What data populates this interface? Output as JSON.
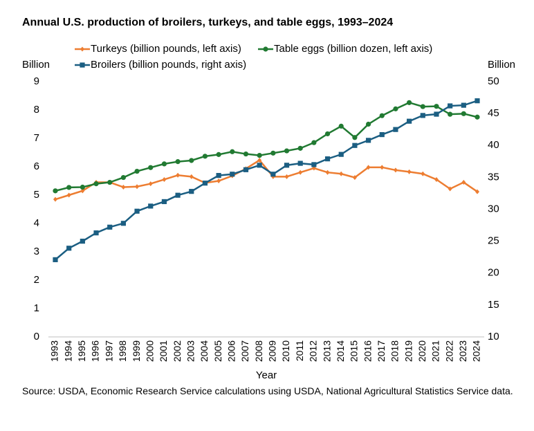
{
  "chart_data": {
    "type": "line",
    "title": "Annual U.S. production of broilers, turkeys, and table eggs, 1993–2024",
    "y_label": "Billion",
    "y2_label": "Billion",
    "x_label": "Year",
    "source": "Source: USDA, Economic Research Service calculations using USDA, National Agricultural Statistics Service data.",
    "categories": [
      "1993",
      "1994",
      "1995",
      "1996",
      "1997",
      "1998",
      "1999",
      "2000",
      "2001",
      "2002",
      "2003",
      "2004",
      "2005",
      "2006",
      "2007",
      "2008",
      "2009",
      "2010",
      "2011",
      "2012",
      "2013",
      "2014",
      "2015",
      "2016",
      "2017",
      "2018",
      "2019",
      "2020",
      "2021",
      "2022",
      "2023",
      "2024"
    ],
    "ylim": [
      0,
      9
    ],
    "yticks": [
      0,
      1,
      2,
      3,
      4,
      5,
      6,
      7,
      8,
      9
    ],
    "y2lim": [
      10,
      50
    ],
    "y2ticks": [
      10,
      15,
      20,
      25,
      30,
      35,
      40,
      45,
      50
    ],
    "grid": false,
    "series": [
      {
        "name": "Turkeys (billion pounds, left axis)",
        "color": "#ed7d31",
        "marker": "diamond",
        "values": [
          4.85,
          5.0,
          5.15,
          5.45,
          5.45,
          5.28,
          5.3,
          5.4,
          5.55,
          5.7,
          5.65,
          5.43,
          5.5,
          5.68,
          5.93,
          6.23,
          5.65,
          5.65,
          5.8,
          5.95,
          5.8,
          5.75,
          5.62,
          5.98,
          5.98,
          5.88,
          5.82,
          5.75,
          5.55,
          5.22,
          5.45,
          5.12
        ]
      },
      {
        "name": "Table eggs (billion dozen, left axis)",
        "color": "#217a32",
        "marker": "circle",
        "values": [
          5.15,
          5.27,
          5.28,
          5.4,
          5.45,
          5.62,
          5.84,
          5.97,
          6.1,
          6.18,
          6.22,
          6.37,
          6.43,
          6.53,
          6.45,
          6.4,
          6.48,
          6.56,
          6.65,
          6.85,
          7.16,
          7.43,
          7.03,
          7.5,
          7.8,
          8.04,
          8.26,
          8.12,
          8.13,
          7.85,
          7.87,
          7.75
        ]
      },
      {
        "name": "Broilers (billion pounds, right axis)",
        "color": "#1b5e82",
        "marker": "square",
        "axis": "y2",
        "values": [
          22.1,
          23.9,
          25.0,
          26.3,
          27.2,
          27.8,
          29.7,
          30.5,
          31.2,
          32.2,
          32.8,
          34.1,
          35.3,
          35.5,
          36.2,
          36.9,
          35.5,
          36.9,
          37.2,
          37.0,
          37.9,
          38.6,
          40.0,
          40.8,
          41.7,
          42.5,
          43.8,
          44.7,
          44.9,
          46.2,
          46.3,
          47.0
        ]
      }
    ]
  }
}
